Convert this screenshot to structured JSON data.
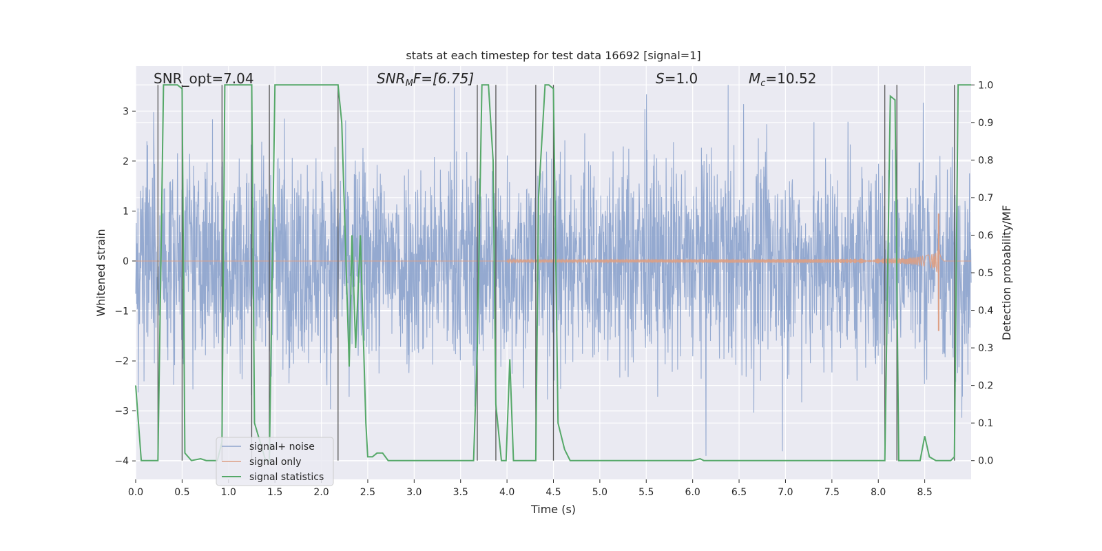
{
  "chart_data": {
    "type": "line",
    "title": "stats at each timestep for test data 16692 [signal=1]",
    "xlabel": "Time (s)",
    "ylabel_left": "Whitened strain",
    "ylabel_right": "Detection probability/MF",
    "xlim": [
      0.0,
      9.0
    ],
    "ylim_left": [
      -4.37,
      3.9
    ],
    "ylim_right": [
      -0.05,
      1.05
    ],
    "x_ticks": [
      "0.0",
      "0.5",
      "1.0",
      "1.5",
      "2.0",
      "2.5",
      "3.0",
      "3.5",
      "4.0",
      "4.5",
      "5.0",
      "5.5",
      "6.0",
      "6.5",
      "7.0",
      "7.5",
      "8.0",
      "8.5"
    ],
    "y_left_ticks": [
      "−4",
      "−3",
      "−2",
      "−1",
      "0",
      "1",
      "2",
      "3"
    ],
    "y_right_ticks": [
      "0.0",
      "0.1",
      "0.2",
      "0.3",
      "0.4",
      "0.5",
      "0.6",
      "0.7",
      "0.8",
      "0.9",
      "1.0"
    ],
    "annotations": [
      {
        "text": "SNR_opt=7.04"
      },
      {
        "text": "SNR",
        "sub": "M",
        "suffix": "F=[6.75]"
      },
      {
        "text": "S",
        "suffix": "=1.0"
      },
      {
        "text": "M",
        "sub": "c",
        "suffix": "=10.52"
      }
    ],
    "legend": {
      "position": "lower-left",
      "entries": [
        "signal+ noise",
        "signal only",
        "signal statistics"
      ]
    },
    "colors": {
      "noise": "#8fa5cd",
      "signal": "#dd9e83",
      "stats": "#55a868",
      "vlines": "#555555",
      "background": "#eaeaf2",
      "grid": "#ffffff"
    },
    "noise_envelope": {
      "typical_amplitude": 1.8,
      "max_amplitude": 3.6
    },
    "signal_chirp": {
      "start_time": 4.0,
      "merger_time": 8.65,
      "peak_amplitude": 0.95,
      "min_amplitude": -1.4
    },
    "detection_lines_x": [
      0.24,
      0.5,
      0.93,
      1.25,
      1.44,
      2.18,
      3.68,
      3.88,
      4.31,
      4.5,
      8.07,
      8.2,
      8.82
    ],
    "statistics_series": {
      "x": [
        0.0,
        0.06,
        0.24,
        0.27,
        0.3,
        0.45,
        0.5,
        0.53,
        0.6,
        0.7,
        0.76,
        0.88,
        0.93,
        0.96,
        1.02,
        1.25,
        1.28,
        1.4,
        1.44,
        1.5,
        2.18,
        2.22,
        2.3,
        2.33,
        2.37,
        2.42,
        2.48,
        2.5,
        2.55,
        2.6,
        2.66,
        2.72,
        3.64,
        3.68,
        3.73,
        3.8,
        3.85,
        3.88,
        3.94,
        3.99,
        4.03,
        4.07,
        4.12,
        4.31,
        4.34,
        4.41,
        4.45,
        4.5,
        4.55,
        4.62,
        4.68,
        6.0,
        6.08,
        6.12,
        8.07,
        8.13,
        8.18,
        8.22,
        8.37,
        8.45,
        8.5,
        8.55,
        8.62,
        8.78,
        8.82,
        8.86,
        8.93,
        9.0
      ],
      "y": [
        0.2,
        0.0,
        0.0,
        0.5,
        1.0,
        1.0,
        0.99,
        0.02,
        0.0,
        0.005,
        0.0,
        0.0,
        0.05,
        1.0,
        1.0,
        1.0,
        0.1,
        0.0,
        0.0,
        1.0,
        1.0,
        0.9,
        0.25,
        0.6,
        0.3,
        0.6,
        0.1,
        0.01,
        0.01,
        0.02,
        0.02,
        0.0,
        0.0,
        0.3,
        1.0,
        1.0,
        0.8,
        0.15,
        0.0,
        0.0,
        0.27,
        0.0,
        0.0,
        0.0,
        0.7,
        1.0,
        1.0,
        0.99,
        0.1,
        0.03,
        0.0,
        0.0,
        0.005,
        0.0,
        0.0,
        0.97,
        0.96,
        0.0,
        0.0,
        0.0,
        0.065,
        0.01,
        0.0,
        0.0,
        0.01,
        1.0,
        1.0,
        1.0
      ]
    }
  }
}
